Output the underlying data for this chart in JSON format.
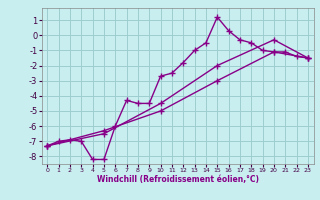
{
  "title": "",
  "xlabel": "Windchill (Refroidissement éolien,°C)",
  "bg_color": "#c8eef0",
  "grid_color": "#9ecdd0",
  "line_color": "#880088",
  "xlim": [
    -0.5,
    23.5
  ],
  "ylim": [
    -8.5,
    1.8
  ],
  "xticks": [
    0,
    1,
    2,
    3,
    4,
    5,
    6,
    7,
    8,
    9,
    10,
    11,
    12,
    13,
    14,
    15,
    16,
    17,
    18,
    19,
    20,
    21,
    22,
    23
  ],
  "yticks": [
    1,
    0,
    -1,
    -2,
    -3,
    -4,
    -5,
    -6,
    -7,
    -8
  ],
  "line1_x": [
    0,
    1,
    2,
    3,
    4,
    5,
    6,
    7,
    8,
    9,
    10,
    11,
    12,
    13,
    14,
    15,
    16,
    17,
    18,
    19,
    20,
    21,
    22,
    23
  ],
  "line1_y": [
    -7.3,
    -7.0,
    -6.9,
    -7.0,
    -8.2,
    -8.2,
    -6.0,
    -4.3,
    -4.5,
    -4.5,
    -2.7,
    -2.5,
    -1.8,
    -1.0,
    -0.5,
    1.2,
    0.3,
    -0.3,
    -0.5,
    -1.0,
    -1.1,
    -1.1,
    -1.4,
    -1.5
  ],
  "line2_x": [
    0,
    5,
    10,
    15,
    20,
    23
  ],
  "line2_y": [
    -7.3,
    -6.3,
    -5.0,
    -3.0,
    -1.1,
    -1.5
  ],
  "line3_x": [
    0,
    5,
    10,
    15,
    20,
    23
  ],
  "line3_y": [
    -7.3,
    -6.5,
    -4.5,
    -2.0,
    -0.3,
    -1.5
  ],
  "marker": "+",
  "markersize": 4,
  "linewidth": 1.0
}
